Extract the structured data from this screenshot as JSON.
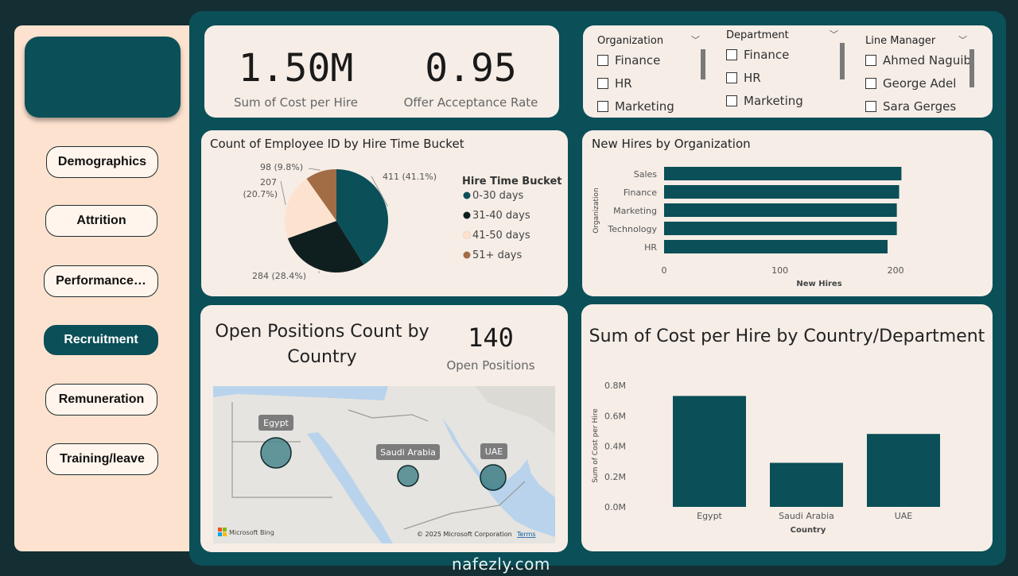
{
  "nav": {
    "items": [
      {
        "label": "Demographics"
      },
      {
        "label": "Attrition"
      },
      {
        "label": "Performance…"
      },
      {
        "label": "Recruitment"
      },
      {
        "label": "Remuneration"
      },
      {
        "label": "Training/leave"
      }
    ],
    "active": "Recruitment"
  },
  "kpis": {
    "cost": {
      "value": "1.50M",
      "label": "Sum of Cost per Hire"
    },
    "offer": {
      "value": "0.95",
      "label": "Offer Acceptance Rate"
    }
  },
  "slicers": {
    "organization": {
      "title": "Organization",
      "items": [
        "Finance",
        "HR",
        "Marketing"
      ]
    },
    "department": {
      "title": "Department",
      "items": [
        "Finance",
        "HR",
        "Marketing"
      ]
    },
    "line_manager": {
      "title": "Line Manager",
      "items": [
        "Ahmed Naguib",
        "George Adel",
        "Sara Gerges"
      ]
    }
  },
  "pie": {
    "title": "Count of Employee ID by Hire Time Bucket",
    "legend_title": "Hire Time Bucket",
    "chart_data": {
      "type": "pie",
      "slices": [
        {
          "name": "0-30 days",
          "value": 411,
          "label": "411 (41.1%)",
          "color": "#0b4f58"
        },
        {
          "name": "31-40 days",
          "value": 284,
          "label": "284 (28.4%)",
          "color": "#0f1e1f"
        },
        {
          "name": "41-50 days",
          "value": 207,
          "label": "207 (20.7%)",
          "color": "#fde3cf"
        },
        {
          "name": "51+ days",
          "value": 98,
          "label": "98 (9.8%)",
          "color": "#a26c45"
        }
      ]
    }
  },
  "hbar": {
    "title": "New Hires by Organization",
    "chart_data": {
      "type": "bar",
      "orientation": "horizontal",
      "categories": [
        "Sales",
        "Finance",
        "Marketing",
        "Technology",
        "HR"
      ],
      "values": [
        205,
        203,
        201,
        201,
        193
      ],
      "xlabel": "New Hires",
      "ylabel": "Organization",
      "xlim": [
        0,
        215
      ],
      "xticks": [
        "0",
        "100",
        "200"
      ],
      "color": "#0b4f58"
    }
  },
  "open_positions": {
    "title": "Open Positions Count by Country",
    "value": "140",
    "label": "Open Positions",
    "map": {
      "countries": [
        {
          "name": "Egypt"
        },
        {
          "name": "Saudi Arabia"
        },
        {
          "name": "UAE"
        }
      ],
      "bing_label": "Microsoft Bing",
      "copyright": "© 2025 Microsoft Corporation",
      "terms": "Terms"
    }
  },
  "cost_country": {
    "title": "Sum of Cost per Hire by Country/Department",
    "chart_data": {
      "type": "bar",
      "categories": [
        "Egypt",
        "Saudi Arabia",
        "UAE"
      ],
      "values": [
        0.73,
        0.29,
        0.48
      ],
      "xlabel": "Country",
      "ylabel": "Sum of Cost per Hire",
      "ylim": [
        0,
        0.8
      ],
      "yticks": [
        "0.0M",
        "0.2M",
        "0.4M",
        "0.6M",
        "0.8M"
      ],
      "color": "#0b4f58"
    }
  },
  "watermark": "nafezly.com"
}
